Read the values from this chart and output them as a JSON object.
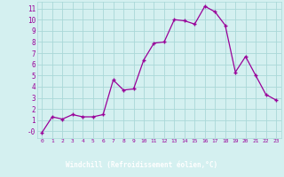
{
  "x": [
    0,
    1,
    2,
    3,
    4,
    5,
    6,
    7,
    8,
    9,
    10,
    11,
    12,
    13,
    14,
    15,
    16,
    17,
    18,
    19,
    20,
    21,
    22,
    23
  ],
  "y": [
    -0.1,
    1.3,
    1.1,
    1.5,
    1.3,
    1.3,
    1.5,
    4.6,
    3.7,
    3.8,
    6.4,
    7.9,
    8.0,
    10.0,
    9.9,
    9.6,
    11.2,
    10.7,
    9.5,
    5.3,
    6.7,
    5.0,
    3.3,
    2.8
  ],
  "line_color": "#990099",
  "marker_color": "#990099",
  "bg_color": "#d4f0f0",
  "grid_color": "#aad8d8",
  "label_bar_color": "#7b2d8b",
  "xlabel": "Windchill (Refroidissement éolien,°C)",
  "tick_color": "#990099",
  "xlim": [
    -0.5,
    23.5
  ],
  "ylim": [
    -0.6,
    11.6
  ],
  "ytick_labels": [
    "-0",
    "1",
    "2",
    "3",
    "4",
    "5",
    "6",
    "7",
    "8",
    "9",
    "10",
    "11"
  ],
  "ytick_vals": [
    0,
    1,
    2,
    3,
    4,
    5,
    6,
    7,
    8,
    9,
    10,
    11
  ],
  "xtick_vals": [
    0,
    1,
    2,
    3,
    4,
    5,
    6,
    7,
    8,
    9,
    10,
    11,
    12,
    13,
    14,
    15,
    16,
    17,
    18,
    19,
    20,
    21,
    22,
    23
  ]
}
